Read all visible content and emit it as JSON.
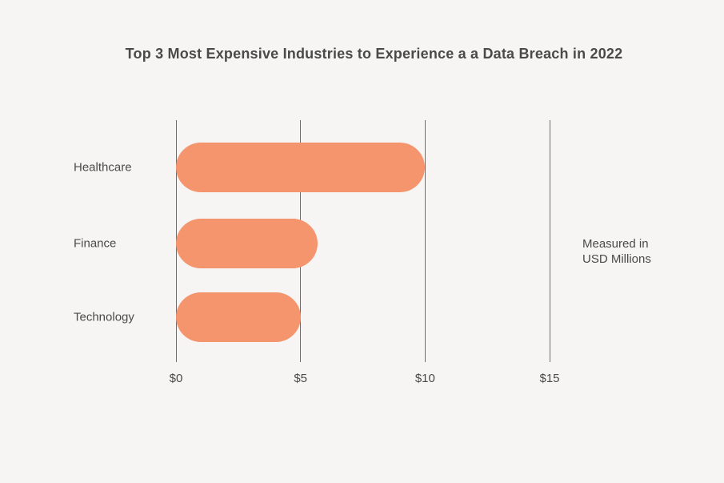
{
  "chart_data": {
    "type": "bar",
    "orientation": "horizontal",
    "title": "Top 3 Most Expensive Industries to Experience a a Data Breach in 2022",
    "categories": [
      "Healthcare",
      "Finance",
      "Technology"
    ],
    "values": [
      10.0,
      5.7,
      5.0
    ],
    "xlim": [
      0,
      15
    ],
    "x_ticks": [
      {
        "value": 0,
        "label": "$0"
      },
      {
        "value": 5,
        "label": "$5"
      },
      {
        "value": 10,
        "label": "$10"
      },
      {
        "value": 15,
        "label": "$15"
      }
    ],
    "xlabel": "",
    "ylabel": "",
    "annotation": "Measured in USD Millions",
    "annotation_lines": [
      "Measured in",
      "USD Millions"
    ],
    "legend": "none",
    "grid": "vertical gridlines only",
    "colors": {
      "bar": "#F5956E",
      "gridline": "#6E6E6E",
      "text": "#4A4A4A",
      "background": "#F6F5F3"
    }
  }
}
